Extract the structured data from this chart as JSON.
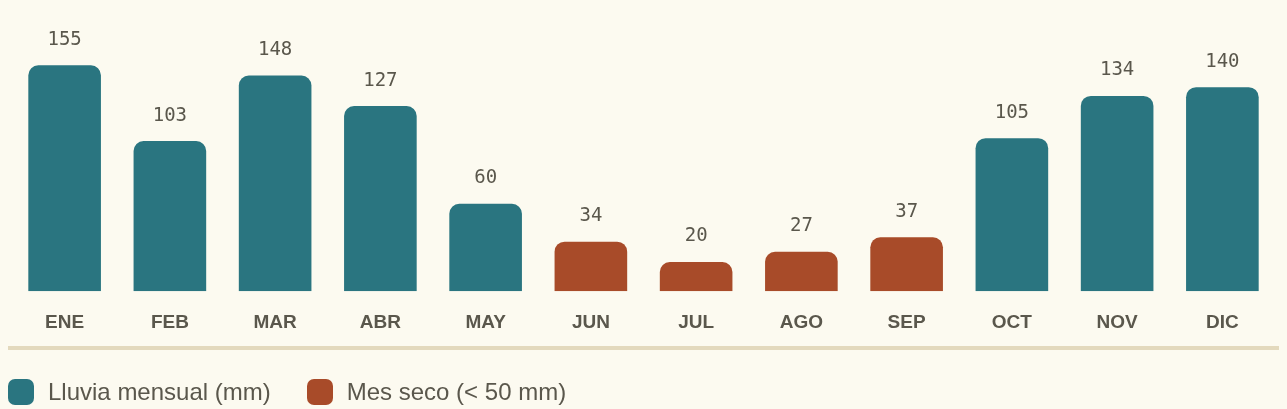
{
  "chart_data": {
    "type": "bar",
    "categories": [
      "ENE",
      "FEB",
      "MAR",
      "ABR",
      "MAY",
      "JUN",
      "JUL",
      "AGO",
      "SEP",
      "OCT",
      "NOV",
      "DIC"
    ],
    "stacked": true,
    "data_labels": true,
    "tick_labels": "x",
    "grid": false,
    "legend": "bottom left",
    "series": [
      {
        "name": "Lluvia mensual (mm)",
        "color": "#2a7580",
        "values": [
          155,
          103,
          148,
          127,
          60,
          null,
          null,
          null,
          null,
          105,
          134,
          140
        ]
      },
      {
        "name": "Mes seco (< 50 mm)",
        "color": "#a84b29",
        "values": [
          null,
          null,
          null,
          null,
          null,
          34,
          20,
          27,
          37,
          null,
          null,
          null
        ]
      }
    ]
  }
}
